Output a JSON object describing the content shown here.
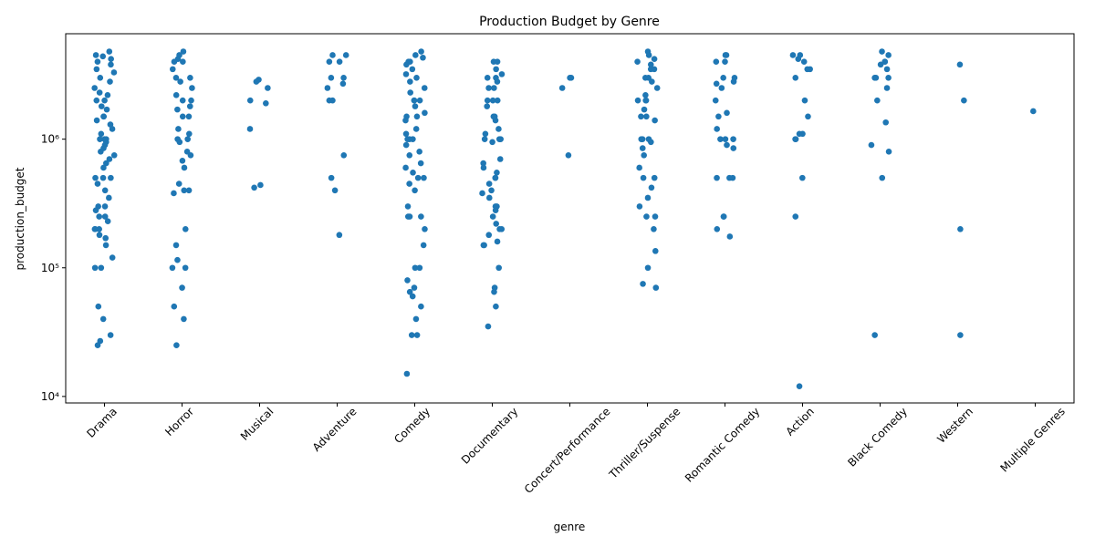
{
  "chart_data": {
    "type": "strip",
    "title": "Production Budget by Genre",
    "x_label": "genre",
    "y_label": "production_budget",
    "log_y": true,
    "color": "#1f77b4",
    "ylim": [
      8900,
      6600000
    ],
    "yticks": [
      {
        "value": 10000,
        "label": "10⁴"
      },
      {
        "value": 100000,
        "label": "10⁵"
      },
      {
        "value": 1000000,
        "label": "10⁶"
      }
    ],
    "categories": [
      "Drama",
      "Horror",
      "Musical",
      "Adventure",
      "Comedy",
      "Documentary",
      "Concert/Performance",
      "Thriller/Suspense",
      "Romantic Comedy",
      "Action",
      "Black Comedy",
      "Western",
      "Multiple Genres"
    ],
    "values": [
      [
        4800000,
        4500000,
        4400000,
        4200000,
        4000000,
        3800000,
        3500000,
        3300000,
        3000000,
        2800000,
        2500000,
        2300000,
        2200000,
        2000000,
        2000000,
        1800000,
        1700000,
        1500000,
        1500000,
        1400000,
        1300000,
        1200000,
        1100000,
        1000000,
        1000000,
        1000000,
        950000,
        900000,
        850000,
        800000,
        750000,
        700000,
        650000,
        600000,
        500000,
        500000,
        500000,
        450000,
        400000,
        350000,
        300000,
        300000,
        280000,
        250000,
        250000,
        230000,
        200000,
        200000,
        200000,
        180000,
        170000,
        150000,
        120000,
        100000,
        100000,
        50000,
        40000,
        30000,
        27000,
        25000
      ],
      [
        4800000,
        4500000,
        4200000,
        4000000,
        4000000,
        3500000,
        3000000,
        3000000,
        2800000,
        2500000,
        2200000,
        2000000,
        2000000,
        1800000,
        1700000,
        1500000,
        1500000,
        1200000,
        1100000,
        1000000,
        1000000,
        950000,
        800000,
        750000,
        680000,
        600000,
        450000,
        400000,
        400000,
        380000,
        200000,
        150000,
        115000,
        100000,
        100000,
        70000,
        50000,
        40000,
        25000
      ],
      [
        2900000,
        2800000,
        2500000,
        2000000,
        1900000,
        1200000,
        440000,
        420000
      ],
      [
        4500000,
        4500000,
        4000000,
        4000000,
        3000000,
        3000000,
        2700000,
        2500000,
        2000000,
        2000000,
        750000,
        500000,
        400000,
        180000
      ],
      [
        4800000,
        4500000,
        4300000,
        4000000,
        4000000,
        3800000,
        3500000,
        3200000,
        3000000,
        2800000,
        2500000,
        2300000,
        2000000,
        2000000,
        2000000,
        1800000,
        1600000,
        1500000,
        1500000,
        1400000,
        1200000,
        1100000,
        1000000,
        1000000,
        1000000,
        900000,
        800000,
        750000,
        650000,
        600000,
        550000,
        500000,
        500000,
        450000,
        400000,
        300000,
        250000,
        250000,
        250000,
        200000,
        150000,
        100000,
        100000,
        80000,
        70000,
        65000,
        60000,
        50000,
        40000,
        30000,
        30000,
        15000
      ],
      [
        4000000,
        4000000,
        3500000,
        3200000,
        3000000,
        3000000,
        2800000,
        2500000,
        2500000,
        2000000,
        2000000,
        2000000,
        1800000,
        1500000,
        1500000,
        1400000,
        1200000,
        1100000,
        1000000,
        1000000,
        1000000,
        950000,
        700000,
        650000,
        600000,
        550000,
        500000,
        500000,
        450000,
        400000,
        380000,
        350000,
        300000,
        300000,
        280000,
        250000,
        220000,
        200000,
        200000,
        180000,
        160000,
        150000,
        150000,
        100000,
        70000,
        65000,
        50000,
        35000
      ],
      [
        3000000,
        3000000,
        2500000,
        750000
      ],
      [
        4800000,
        4500000,
        4200000,
        4000000,
        3800000,
        3500000,
        3500000,
        3000000,
        3000000,
        2800000,
        2500000,
        2200000,
        2000000,
        2000000,
        2000000,
        1700000,
        1500000,
        1500000,
        1400000,
        1000000,
        1000000,
        1000000,
        950000,
        850000,
        750000,
        600000,
        500000,
        500000,
        420000,
        350000,
        300000,
        250000,
        250000,
        200000,
        135000,
        100000,
        75000,
        70000
      ],
      [
        4500000,
        4500000,
        4000000,
        4000000,
        3000000,
        3000000,
        2800000,
        2700000,
        2500000,
        2000000,
        1600000,
        1500000,
        1200000,
        1000000,
        1000000,
        1000000,
        900000,
        850000,
        500000,
        500000,
        500000,
        250000,
        250000,
        200000,
        175000
      ],
      [
        4500000,
        4500000,
        4200000,
        4000000,
        3500000,
        3500000,
        3000000,
        2000000,
        1500000,
        1100000,
        1100000,
        1000000,
        1000000,
        500000,
        250000,
        12000
      ],
      [
        4800000,
        4500000,
        4000000,
        4000000,
        3800000,
        3500000,
        3000000,
        3000000,
        3000000,
        2500000,
        2000000,
        1350000,
        900000,
        800000,
        500000,
        30000
      ],
      [
        3800000,
        2000000,
        200000,
        30000
      ],
      [
        1650000
      ]
    ]
  }
}
